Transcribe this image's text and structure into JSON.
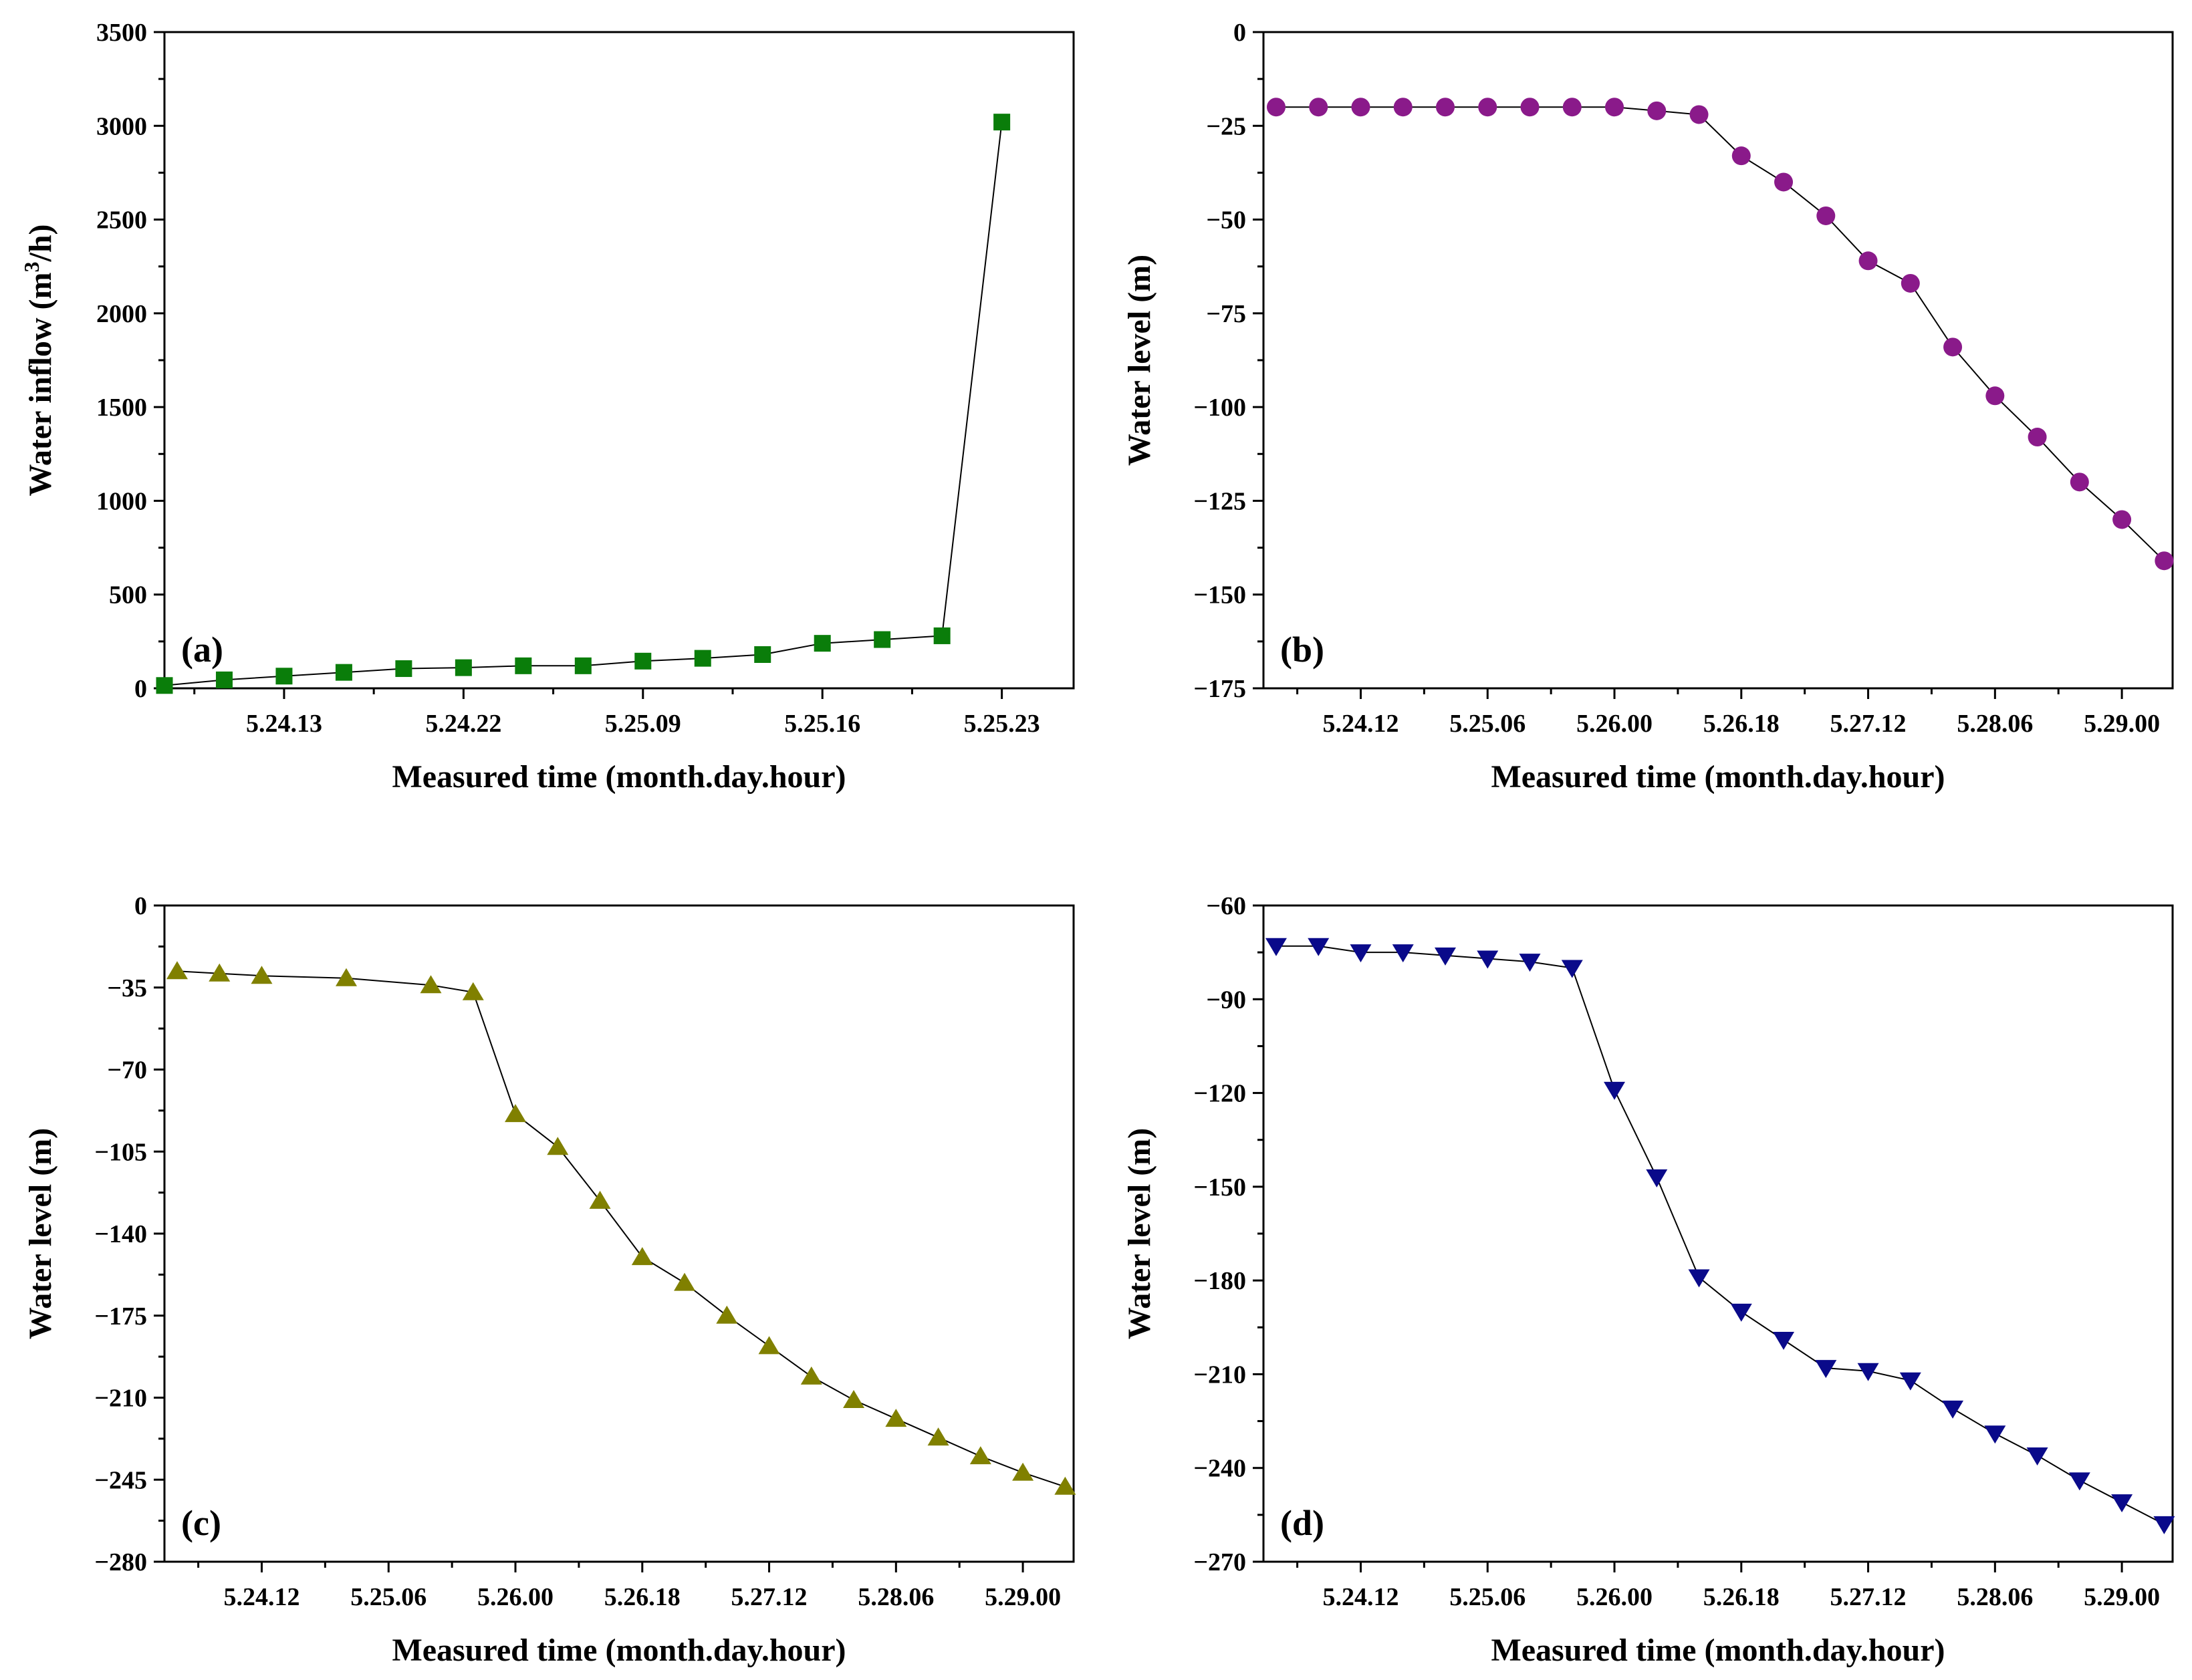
{
  "chart_data": [
    {
      "type": "scatter",
      "panel_label": "(a)",
      "xlabel": "Measured time (month.day.hour)",
      "ylabel": "Water inflow (m³/h)",
      "ylim": [
        0,
        3500
      ],
      "yticks": [
        0,
        500,
        1000,
        1500,
        2000,
        2500,
        3000,
        3500
      ],
      "xlim": [
        0,
        15.2
      ],
      "xticks": [
        {
          "x": 2,
          "label": "5.24.13"
        },
        {
          "x": 5,
          "label": "5.24.22"
        },
        {
          "x": 8,
          "label": "5.25.09"
        },
        {
          "x": 11,
          "label": "5.25.16"
        },
        {
          "x": 14,
          "label": "5.25.23"
        }
      ],
      "marker": "square",
      "color": "#0a7d0a",
      "series": [
        {
          "x": [
            0,
            1,
            2,
            3,
            4,
            5,
            6,
            7,
            8,
            9,
            10,
            11,
            12,
            13,
            14
          ],
          "values": [
            15,
            45,
            65,
            85,
            105,
            110,
            120,
            120,
            145,
            160,
            180,
            240,
            260,
            280,
            3020
          ]
        }
      ]
    },
    {
      "type": "scatter",
      "panel_label": "(b)",
      "xlabel": "Measured time (month.day.hour)",
      "ylabel": "Water level (m)",
      "ylim": [
        -175,
        0
      ],
      "yticks": [
        0,
        -25,
        -50,
        -75,
        -100,
        -125,
        -150,
        -175
      ],
      "xlim": [
        -0.3,
        21.2
      ],
      "xticks": [
        {
          "x": 2,
          "label": "5.24.12"
        },
        {
          "x": 5,
          "label": "5.25.06"
        },
        {
          "x": 8,
          "label": "5.26.00"
        },
        {
          "x": 11,
          "label": "5.26.18"
        },
        {
          "x": 14,
          "label": "5.27.12"
        },
        {
          "x": 17,
          "label": "5.28.06"
        },
        {
          "x": 20,
          "label": "5.29.00"
        }
      ],
      "marker": "circle",
      "color": "#8a1a8a",
      "series": [
        {
          "x": [
            0,
            1,
            2,
            3,
            4,
            5,
            6,
            7,
            8,
            9,
            10,
            11,
            12,
            13,
            14,
            15,
            16,
            17,
            18,
            19,
            20,
            21
          ],
          "values": [
            -20,
            -20,
            -20,
            -20,
            -20,
            -20,
            -20,
            -20,
            -20,
            -21,
            -22,
            -33,
            -40,
            -49,
            -61,
            -67,
            -84,
            -97,
            -108,
            -120,
            -130,
            -141
          ]
        }
      ]
    },
    {
      "type": "scatter",
      "panel_label": "(c)",
      "xlabel": "Measured time (month.day.hour)",
      "ylabel": "Water level (m)",
      "ylim": [
        -280,
        0
      ],
      "yticks": [
        0,
        -35,
        -70,
        -105,
        -140,
        -175,
        -210,
        -245,
        -280
      ],
      "xlim": [
        -0.3,
        21.2
      ],
      "xticks": [
        {
          "x": 2,
          "label": "5.24.12"
        },
        {
          "x": 5,
          "label": "5.25.06"
        },
        {
          "x": 8,
          "label": "5.26.00"
        },
        {
          "x": 11,
          "label": "5.26.18"
        },
        {
          "x": 14,
          "label": "5.27.12"
        },
        {
          "x": 17,
          "label": "5.28.06"
        },
        {
          "x": 20,
          "label": "5.29.00"
        }
      ],
      "marker": "triangle-up",
      "color": "#808000",
      "series": [
        {
          "x": [
            0,
            1,
            2,
            4,
            6,
            7,
            8,
            9,
            10,
            11,
            12,
            13,
            14,
            15,
            16,
            17,
            18,
            19,
            20,
            21
          ],
          "values": [
            -28,
            -29,
            -30,
            -31,
            -34,
            -37,
            -89,
            -103,
            -126,
            -150,
            -161,
            -175,
            -188,
            -201,
            -211,
            -219,
            -227,
            -235,
            -242,
            -248
          ]
        }
      ]
    },
    {
      "type": "scatter",
      "panel_label": "(d)",
      "xlabel": "Measured time (month.day.hour)",
      "ylabel": "Water level (m)",
      "ylim": [
        -270,
        -60
      ],
      "yticks": [
        -60,
        -90,
        -120,
        -150,
        -180,
        -210,
        -240,
        -270
      ],
      "xlim": [
        -0.3,
        21.2
      ],
      "xticks": [
        {
          "x": 2,
          "label": "5.24.12"
        },
        {
          "x": 5,
          "label": "5.25.06"
        },
        {
          "x": 8,
          "label": "5.26.00"
        },
        {
          "x": 11,
          "label": "5.26.18"
        },
        {
          "x": 14,
          "label": "5.27.12"
        },
        {
          "x": 17,
          "label": "5.28.06"
        },
        {
          "x": 20,
          "label": "5.29.00"
        }
      ],
      "marker": "triangle-down",
      "color": "#0a0a8a",
      "series": [
        {
          "x": [
            0,
            1,
            2,
            3,
            4,
            5,
            6,
            7,
            8,
            9,
            10,
            11,
            12,
            13,
            14,
            15,
            16,
            17,
            18,
            19,
            20,
            21
          ],
          "values": [
            -73,
            -73,
            -75,
            -75,
            -76,
            -77,
            -78,
            -80,
            -119,
            -147,
            -179,
            -190,
            -199,
            -208,
            -209,
            -212,
            -221,
            -229,
            -236,
            -244,
            -251,
            -258
          ]
        }
      ]
    }
  ]
}
